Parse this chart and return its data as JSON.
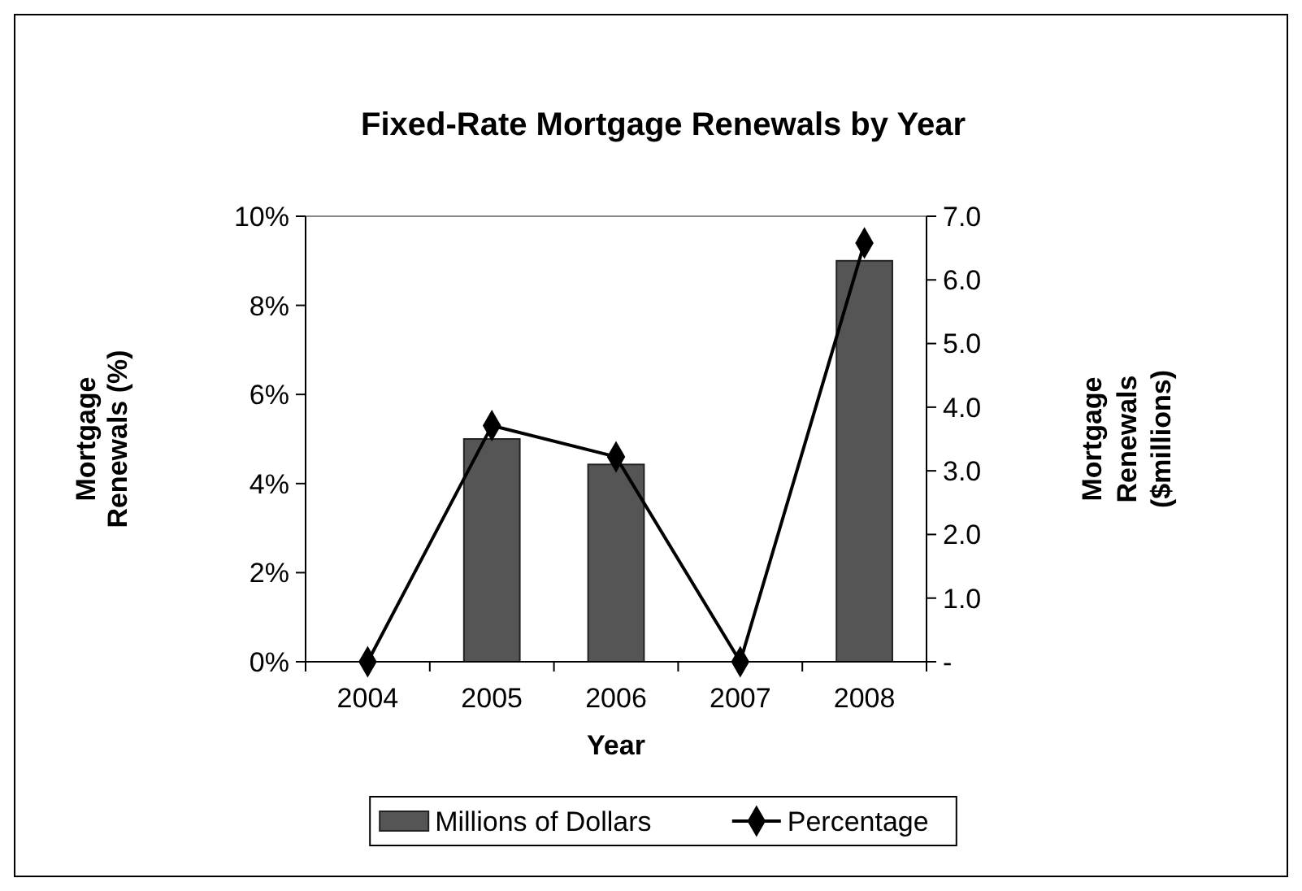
{
  "chart_data": {
    "type": "bar",
    "title": "Fixed-Rate Mortgage Renewals by Year",
    "xlabel": "Year",
    "ylabel": "Mortgage Renewals (%)",
    "y2label": "Mortgage Renewals ($millions)",
    "categories": [
      "2004",
      "2005",
      "2006",
      "2007",
      "2008"
    ],
    "series": [
      {
        "name": "Millions of Dollars",
        "axis": "y2",
        "color": "#555555",
        "values": [
          0,
          3.5,
          3.1,
          0,
          6.3
        ]
      },
      {
        "name": "Percentage",
        "type": "line",
        "axis": "y",
        "color": "#000000",
        "marker": "diamond",
        "values": [
          0,
          5.3,
          4.6,
          0,
          9.4
        ]
      }
    ],
    "ylim": [
      0,
      10
    ],
    "yticks": [
      {
        "value": 0,
        "label": "0%"
      },
      {
        "value": 2,
        "label": "2%"
      },
      {
        "value": 4,
        "label": "4%"
      },
      {
        "value": 6,
        "label": "6%"
      },
      {
        "value": 8,
        "label": "8%"
      },
      {
        "value": 10,
        "label": "10%"
      }
    ],
    "y2lim": [
      0,
      7
    ],
    "y2ticks": [
      {
        "value": 0,
        "label": "-"
      },
      {
        "value": 1,
        "label": "1.0"
      },
      {
        "value": 2,
        "label": "2.0"
      },
      {
        "value": 3,
        "label": "3.0"
      },
      {
        "value": 4,
        "label": "4.0"
      },
      {
        "value": 5,
        "label": "5.0"
      },
      {
        "value": 6,
        "label": "6.0"
      },
      {
        "value": 7,
        "label": "7.0"
      }
    ],
    "grid": false,
    "legend": "bottom"
  }
}
